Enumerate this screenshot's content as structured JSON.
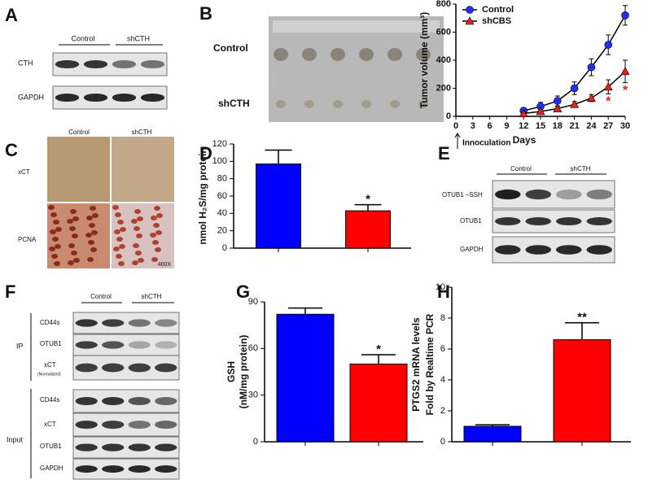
{
  "panels": {
    "A": {
      "letter": "A",
      "lanes": [
        "Control",
        "shCTH"
      ],
      "rows": [
        "CTH",
        "GAPDH"
      ]
    },
    "B": {
      "letter": "B",
      "rows": [
        "Control",
        "shCTH"
      ]
    },
    "C": {
      "letter": "C",
      "lanes": [
        "Control",
        "shCTH"
      ],
      "rows": [
        "xCT",
        "PCNA"
      ],
      "magnification": "400X"
    },
    "D": {
      "letter": "D"
    },
    "E": {
      "letter": "E",
      "lanes": [
        "Control",
        "shCTH"
      ],
      "rows": [
        "OTUB1 –SSH",
        "OTUB1",
        "GAPDH"
      ]
    },
    "F": {
      "letter": "F",
      "lanes": [
        "Control",
        "shCTH"
      ],
      "groups": [
        "IP",
        "Input"
      ],
      "ip_rows": [
        "CD44s",
        "OTUB1",
        "xCT"
      ],
      "ip_note": "(Normalized)",
      "input_rows": [
        "CD44s",
        "xCT",
        "OTUB1",
        "GAPDH"
      ]
    },
    "G": {
      "letter": "G"
    },
    "H": {
      "letter": "H"
    }
  },
  "chart_data": [
    {
      "type": "line",
      "ylabel": "Tumor volume (mm³)",
      "xlabel": "Days",
      "annotation": "Innoculation",
      "x": [
        12,
        15,
        18,
        21,
        24,
        27,
        30
      ],
      "series": [
        {
          "name": "Control",
          "color": "#1f2fff",
          "marker": "circle",
          "values": [
            40,
            70,
            110,
            200,
            350,
            510,
            720
          ],
          "errors": [
            20,
            30,
            35,
            45,
            60,
            70,
            70
          ]
        },
        {
          "name": "shCBS",
          "color": "#e8211b",
          "marker": "triangle",
          "values": [
            20,
            35,
            55,
            85,
            130,
            210,
            320
          ],
          "errors": [
            10,
            15,
            15,
            20,
            25,
            50,
            80
          ],
          "annotations": [
            "*",
            "*"
          ]
        }
      ],
      "xlim": [
        0,
        30
      ],
      "xticks": [
        0,
        3,
        6,
        9,
        12,
        15,
        18,
        21,
        24,
        27,
        30
      ],
      "ylim": [
        0,
        800
      ],
      "yticks": [
        0,
        200,
        400,
        600,
        800
      ],
      "legend": "top-left"
    },
    {
      "type": "bar",
      "ylabel_lines": [
        "nmol H₂S/mg protein"
      ],
      "values": [
        97,
        43
      ],
      "errors": [
        16,
        7
      ],
      "colors": [
        "#0000ff",
        "#ff0000"
      ],
      "annotations": [
        "*"
      ],
      "ylim": [
        0,
        120
      ],
      "yticks": [
        0,
        20,
        40,
        60,
        80,
        100,
        120
      ]
    },
    {
      "type": "bar",
      "ylabel_lines": [
        "GSH",
        "(nM/mg protein)"
      ],
      "values": [
        82,
        50
      ],
      "errors": [
        4,
        6
      ],
      "colors": [
        "#0000ff",
        "#ff0000"
      ],
      "annotations": [
        "*"
      ],
      "ylim": [
        0,
        90
      ],
      "yticks": [
        0,
        30,
        60,
        90
      ]
    },
    {
      "type": "bar",
      "ylabel_lines": [
        "PTGS2 mRNA levels",
        "Fold by Realtime PCR"
      ],
      "values": [
        1.0,
        6.6
      ],
      "errors": [
        0.1,
        1.1
      ],
      "colors": [
        "#0000ff",
        "#ff0000"
      ],
      "annotations": [
        "**"
      ],
      "ylim": [
        0,
        10
      ],
      "yticks": [
        0,
        2,
        4,
        6,
        8,
        10
      ]
    }
  ]
}
